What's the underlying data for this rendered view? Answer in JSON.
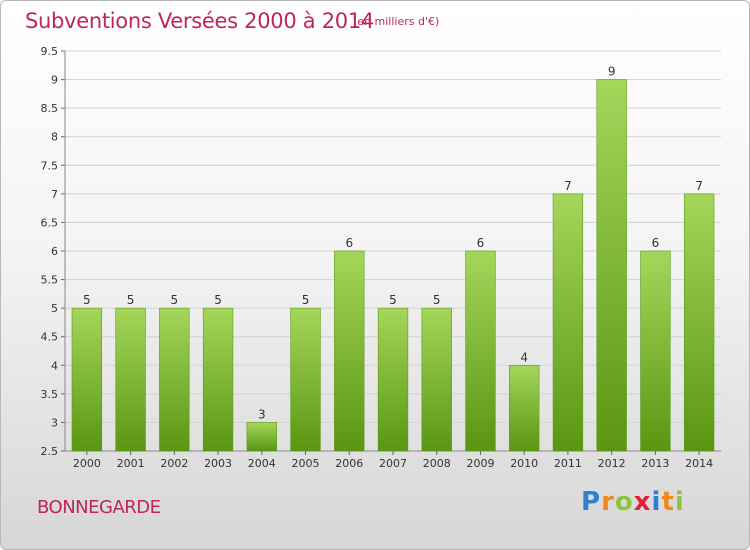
{
  "header": {
    "title": "Subventions Versées 2000 à 2014",
    "unit_note": "(en milliers d'€)"
  },
  "footer": {
    "commune": "BONNEGARDE",
    "logo_letters": [
      "P",
      "r",
      "o",
      "x",
      "i",
      "t",
      "i"
    ],
    "logo_colors": [
      "#2e7fd1",
      "#f08a1c",
      "#8cc63f",
      "#e0213a",
      "#2e7fd1",
      "#f08a1c",
      "#8cc63f"
    ]
  },
  "colors": {
    "bar_top": "#a4d65a",
    "bar_bottom": "#5a9612",
    "grid": "#d2d2d2",
    "title": "#c0245e"
  },
  "chart_data": {
    "type": "bar",
    "categories": [
      "2000",
      "2001",
      "2002",
      "2003",
      "2004",
      "2005",
      "2006",
      "2007",
      "2008",
      "2009",
      "2010",
      "2011",
      "2012",
      "2013",
      "2014"
    ],
    "values": [
      5,
      5,
      5,
      5,
      3,
      5,
      6,
      5,
      5,
      6,
      4,
      7,
      9,
      6,
      7
    ],
    "title": "Subventions Versées 2000 à 2014",
    "ylim": [
      2.5,
      9.5
    ],
    "yticks": [
      2.5,
      3,
      3.5,
      4,
      4.5,
      5,
      5.5,
      6,
      6.5,
      7,
      7.5,
      8,
      8.5,
      9,
      9.5
    ],
    "grid": true
  }
}
